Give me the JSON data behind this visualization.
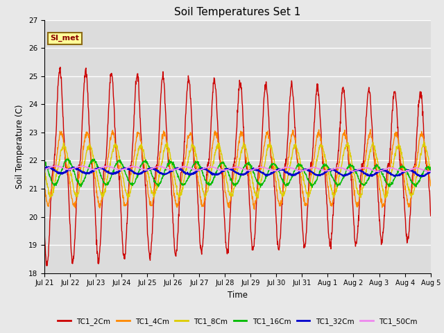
{
  "title": "Soil Temperatures Set 1",
  "xlabel": "Time",
  "ylabel": "Soil Temperature (C)",
  "ylim": [
    18.0,
    27.0
  ],
  "yticks": [
    18.0,
    19.0,
    20.0,
    21.0,
    22.0,
    23.0,
    24.0,
    25.0,
    26.0,
    27.0
  ],
  "bg_color": "#dcdcdc",
  "fig_color": "#e8e8e8",
  "annotation_text": "SI_met",
  "annotation_bg": "#ffff99",
  "annotation_border": "#8b6914",
  "annotation_text_color": "#8b0000",
  "series": [
    {
      "label": "TC1_2Cm",
      "color": "#cc0000",
      "linewidth": 1.0
    },
    {
      "label": "TC1_4Cm",
      "color": "#ff8800",
      "linewidth": 1.0
    },
    {
      "label": "TC1_8Cm",
      "color": "#ddcc00",
      "linewidth": 1.0
    },
    {
      "label": "TC1_16Cm",
      "color": "#00bb00",
      "linewidth": 1.0
    },
    {
      "label": "TC1_32Cm",
      "color": "#0000cc",
      "linewidth": 1.5
    },
    {
      "label": "TC1_50Cm",
      "color": "#ee88ee",
      "linewidth": 1.0
    }
  ],
  "tick_labels": [
    "Jul 21",
    "Jul 22",
    "Jul 23",
    "Jul 24",
    "Jul 25",
    "Jul 26",
    "Jul 27",
    "Jul 28",
    "Jul 29",
    "Jul 30",
    "Jul 31",
    "Aug 1",
    "Aug 2",
    "Aug 3",
    "Aug 4",
    "Aug 5"
  ],
  "tick_positions": [
    0,
    1,
    2,
    3,
    4,
    5,
    6,
    7,
    8,
    9,
    10,
    11,
    12,
    13,
    14,
    15
  ],
  "n_days": 15,
  "points_per_day": 96
}
